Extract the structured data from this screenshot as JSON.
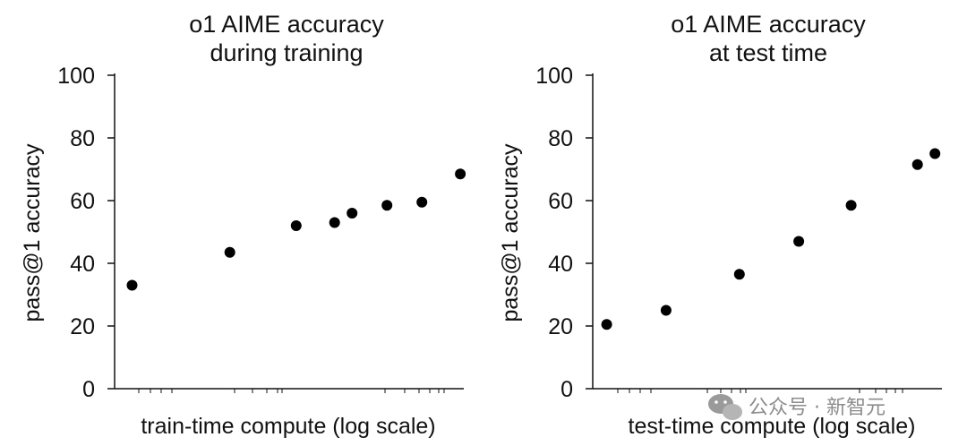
{
  "chart_data": [
    {
      "type": "scatter",
      "title_lines": [
        "o1 AIME accuracy",
        "during training"
      ],
      "xlabel": "train-time compute (log scale)",
      "ylabel": "pass@1 accuracy",
      "x_scale": "log",
      "ylim": [
        0,
        100
      ],
      "yticks": [
        0,
        20,
        40,
        60,
        80,
        100
      ],
      "grid": false,
      "series": [
        {
          "x": [
            0.05,
            0.33,
            0.52,
            0.63,
            0.68,
            0.78,
            0.88,
            0.99
          ],
          "y": [
            33,
            43.5,
            52,
            53,
            56,
            58.5,
            59.5,
            68.5
          ]
        }
      ]
    },
    {
      "type": "scatter",
      "title_lines": [
        "o1 AIME accuracy",
        "at test time"
      ],
      "xlabel": "test-time compute (log scale)",
      "ylabel": "pass@1 accuracy",
      "x_scale": "log",
      "ylim": [
        0,
        100
      ],
      "yticks": [
        0,
        20,
        40,
        60,
        80,
        100
      ],
      "grid": false,
      "series": [
        {
          "x": [
            0.04,
            0.21,
            0.42,
            0.59,
            0.74,
            0.93,
            0.98
          ],
          "y": [
            20.5,
            25,
            36.5,
            47,
            58.5,
            71.5,
            75
          ]
        }
      ]
    }
  ],
  "watermark": {
    "text": "公众号 · 新智元",
    "icon": "wechat-icon"
  },
  "colors": {
    "marker": "#000000",
    "axis": "#111111",
    "watermark": "#8c8c8c"
  }
}
